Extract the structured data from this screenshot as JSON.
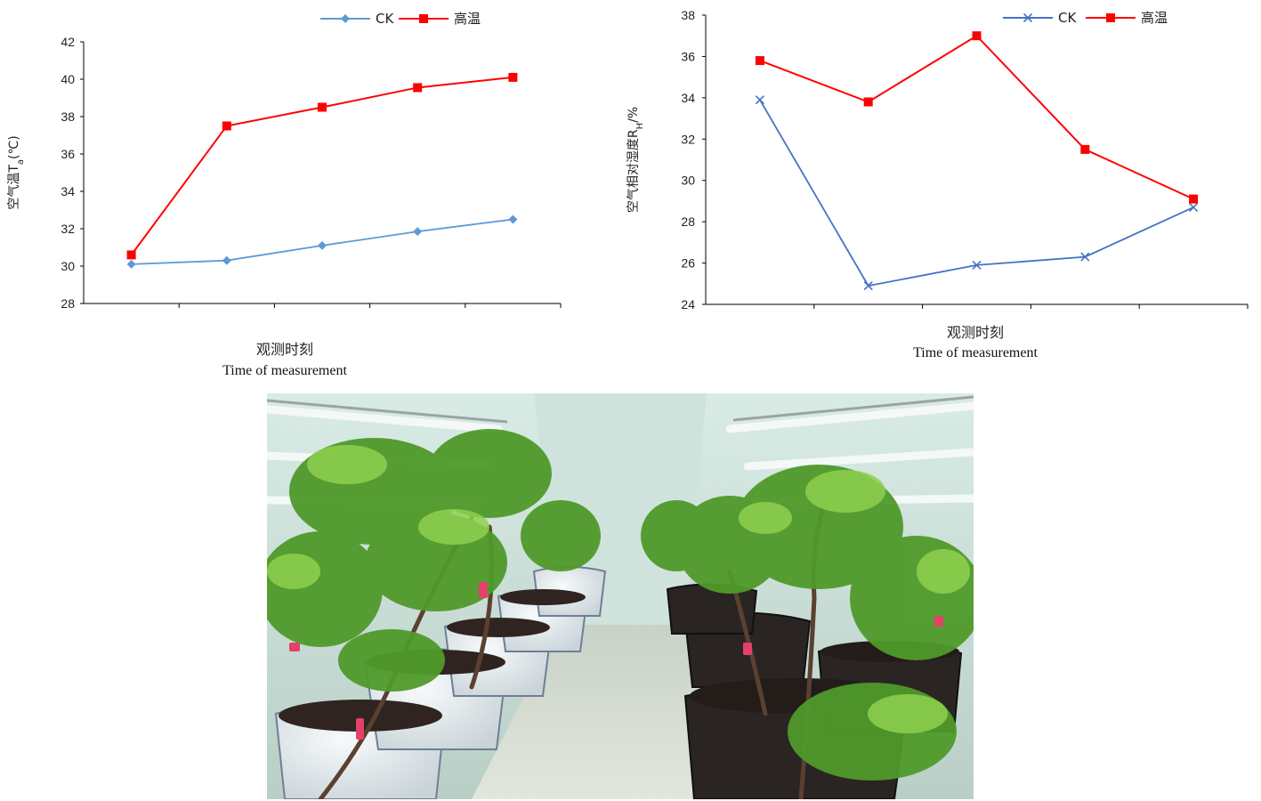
{
  "chart_data": [
    {
      "type": "line",
      "ylabel": "空气温T",
      "ylabel_subscript": "a",
      "ylabel_unit": "(℃)",
      "xlabel_cn": "观测时刻",
      "xlabel_en": "Time of measurement",
      "ylim": [
        28,
        42
      ],
      "yticks": [
        28,
        30,
        32,
        34,
        36,
        38,
        40,
        42
      ],
      "x": [
        1,
        2,
        3,
        4,
        5
      ],
      "legend_position": "top",
      "series": [
        {
          "name": "CK",
          "color": "#5b9bd5",
          "marker": "diamond",
          "values": [
            30.1,
            30.3,
            31.1,
            31.85,
            32.5
          ]
        },
        {
          "name": "高温",
          "color": "#ff0000",
          "marker": "square",
          "values": [
            30.6,
            37.5,
            38.5,
            39.55,
            40.1
          ]
        }
      ]
    },
    {
      "type": "line",
      "ylabel": "空气相对湿度R",
      "ylabel_subscript": "H",
      "ylabel_unit": "/%",
      "xlabel_cn": "观测时刻",
      "xlabel_en": "Time of measurement",
      "ylim": [
        24,
        38
      ],
      "yticks": [
        24,
        26,
        28,
        30,
        32,
        34,
        36,
        38
      ],
      "x": [
        1,
        2,
        3,
        4,
        5
      ],
      "legend_position": "top",
      "series": [
        {
          "name": "CK",
          "color": "#4472c4",
          "marker": "x",
          "values": [
            33.9,
            24.9,
            25.9,
            26.3,
            28.7
          ]
        },
        {
          "name": "高温",
          "color": "#ff0000",
          "marker": "square",
          "values": [
            35.8,
            33.8,
            37.0,
            31.5,
            29.1
          ]
        }
      ]
    }
  ],
  "photo": {
    "subject": "greenhouse-plants-photo",
    "colors": {
      "leaf": "#4f9a2a",
      "leaf_light": "#8fd14f",
      "light_tube": "#f2f7f6",
      "wall": "#c9dcd5",
      "floor": "#d7ddd2",
      "pot": "#e8eef0",
      "soil": "#2e2420",
      "tag": "#e4406a"
    }
  }
}
